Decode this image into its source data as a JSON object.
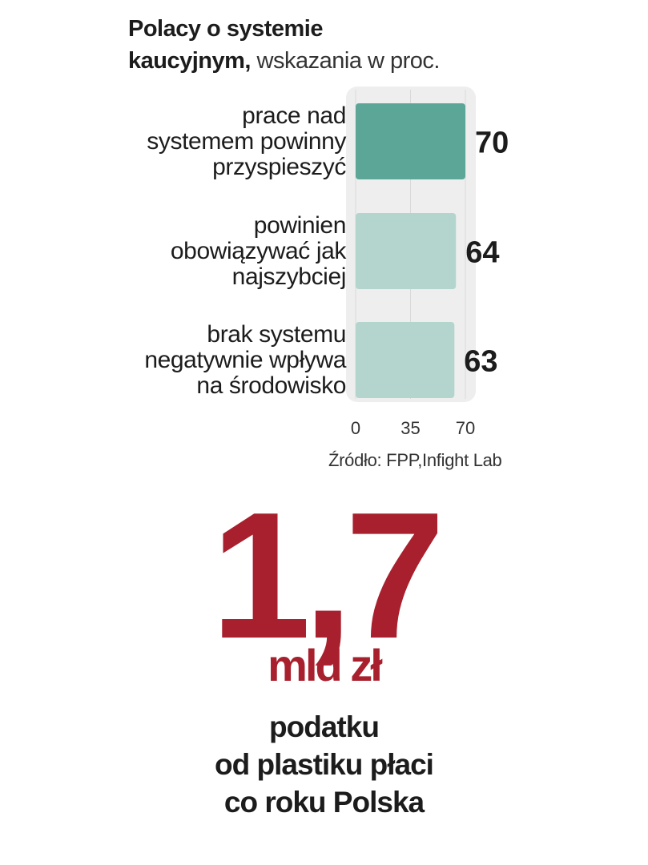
{
  "header": {
    "title_bold_line1": "Polacy o systemie",
    "title_bold_line2": "kaucyjnym,",
    "title_regular": "wskazania w proc."
  },
  "chart_data": {
    "type": "bar",
    "orientation": "horizontal",
    "categories": [
      [
        "prace nad",
        "systemem powinny",
        "przyspieszyć"
      ],
      [
        "powinien",
        "obowiązywać jak",
        "najszybciej"
      ],
      [
        "brak systemu",
        "negatywnie wpływa",
        "na środowisko"
      ]
    ],
    "values": [
      70,
      64,
      63
    ],
    "value_labels": [
      "70",
      "64",
      "63"
    ],
    "xlim": [
      0,
      70
    ],
    "xticks": [
      "0",
      "35",
      "70"
    ],
    "grid": true,
    "colors": [
      "#5ba697",
      "#b3d5cd",
      "#b3d5cd"
    ],
    "track_color": "#eeeeee"
  },
  "source": "Źródło: FPP,Infight Lab",
  "highlight": {
    "number": "1,7",
    "unit": "mld zł",
    "caption": [
      "podatku",
      "od plastiku płaci",
      "co roku Polska"
    ],
    "color": "#a8202d"
  }
}
